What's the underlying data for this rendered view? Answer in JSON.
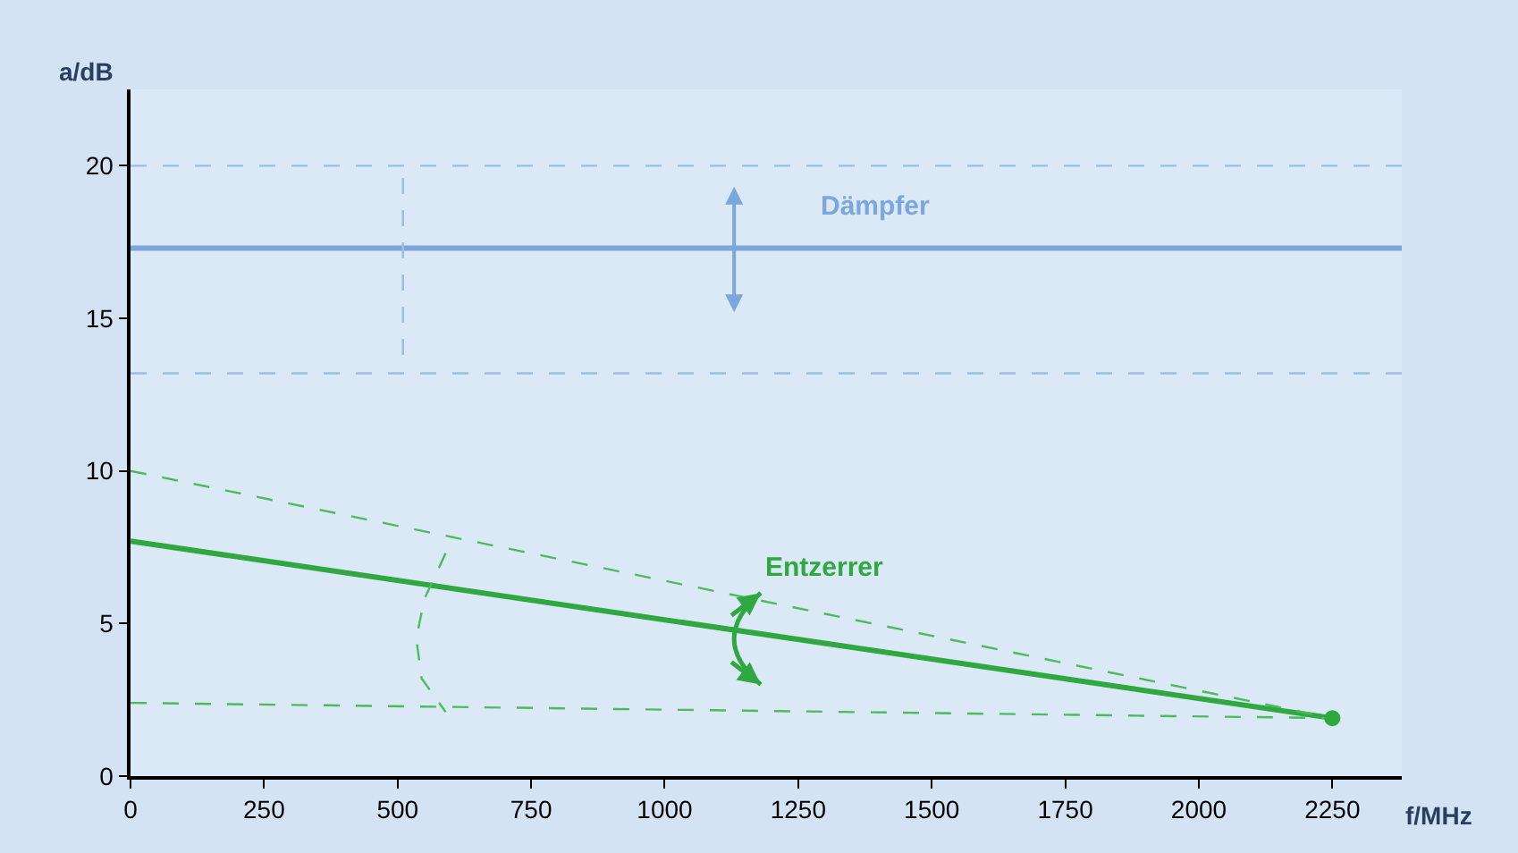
{
  "chart_data": {
    "type": "line",
    "xlabel": "f/MHz",
    "ylabel": "a/dB",
    "xlim": [
      0,
      2380
    ],
    "ylim": [
      0,
      22.5
    ],
    "xticks": [
      0,
      250,
      500,
      750,
      1000,
      1250,
      1500,
      1750,
      2000,
      2250
    ],
    "yticks": [
      0,
      5,
      10,
      15,
      20
    ],
    "grid": false,
    "legend": false,
    "series": [
      {
        "name": "Dämpfer",
        "color": "#7ba7dc",
        "x": [
          0,
          2380
        ],
        "values": [
          17.3,
          17.3
        ],
        "line_style": "solid"
      },
      {
        "color": "#9bbde6",
        "x": [
          0,
          2380
        ],
        "values": [
          20,
          20
        ],
        "line_style": "dashed"
      },
      {
        "color": "#9bbde6",
        "x": [
          0,
          2380
        ],
        "values": [
          13.2,
          13.2
        ],
        "line_style": "dashed"
      },
      {
        "color": "#9bbde6",
        "x": [
          510,
          510
        ],
        "values": [
          19.6,
          13.7
        ],
        "line_style": "dashed"
      },
      {
        "name": "Entzerrer",
        "color": "#2ea83f",
        "x": [
          0,
          2250
        ],
        "values": [
          7.7,
          1.9
        ],
        "line_style": "solid"
      },
      {
        "color": "#4cbb5c",
        "x": [
          590,
          550,
          535,
          545,
          590
        ],
        "values": [
          7.3,
          5.8,
          4.5,
          3.2,
          2.1
        ],
        "line_style": "dashed"
      },
      {
        "color": "#4cbb5c",
        "x": [
          0,
          2250
        ],
        "values": [
          10,
          1.9
        ],
        "line_style": "dashed"
      },
      {
        "color": "#4cbb5c",
        "x": [
          0,
          2250
        ],
        "values": [
          2.4,
          1.9
        ],
        "line_style": "dashed"
      },
      {
        "type": "scatter",
        "color": "#2ea83f",
        "x": [
          2250
        ],
        "values": [
          1.9
        ],
        "marker": "circle"
      }
    ]
  }
}
